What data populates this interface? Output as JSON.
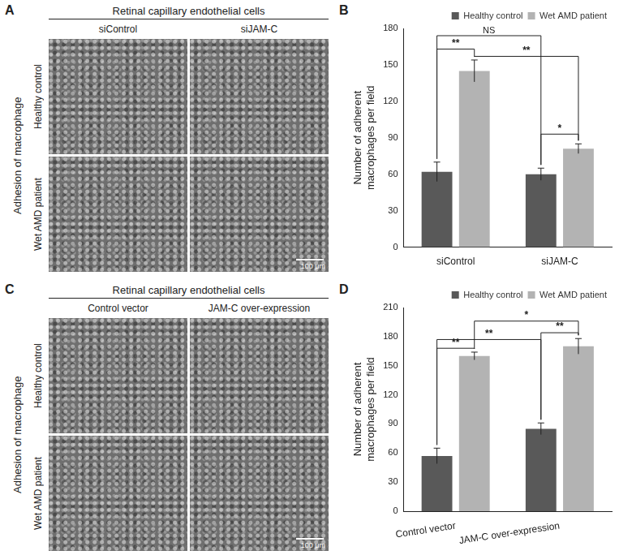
{
  "image_panels": [
    {
      "panel": "A",
      "header": "Retinal capillary endothelial cells",
      "columns": [
        "siControl",
        "siJAM-C"
      ],
      "side_title": "Adhesion of macrophage",
      "rows": [
        "Healthy control",
        "Wet AMD patient"
      ],
      "scale_bar": "100 μm"
    },
    {
      "panel": "C",
      "header": "Retinal capillary endothelial cells",
      "columns": [
        "Control vector",
        "JAM-C over-expression"
      ],
      "side_title": "Adhesion of macrophage",
      "rows": [
        "Healthy control",
        "Wet AMD patient"
      ],
      "scale_bar": "100 μm"
    }
  ],
  "chart_data": [
    {
      "panel": "B",
      "type": "bar",
      "categories": [
        "siControl",
        "siJAM-C"
      ],
      "series": [
        {
          "name": "Healthy control",
          "color": "#595959",
          "values": [
            62,
            60
          ],
          "errors": [
            8,
            5
          ]
        },
        {
          "name": "Wet AMD patient",
          "color": "#b3b3b3",
          "values": [
            145,
            81
          ],
          "errors": [
            9,
            4
          ]
        }
      ],
      "y_label": "Number of adherent macrophages per field",
      "ylim": [
        0,
        180
      ],
      "yticks": [
        0,
        30,
        60,
        90,
        120,
        150,
        180
      ],
      "legend": "upper right",
      "grid": false,
      "annotations": [
        {
          "label": "**",
          "from": [
            0,
            0
          ],
          "to": [
            0,
            1
          ],
          "y": 163
        },
        {
          "label": "**",
          "from": [
            0,
            1
          ],
          "to": [
            1,
            1
          ],
          "y": 157
        },
        {
          "label": "NS",
          "from": [
            0,
            0
          ],
          "to": [
            1,
            0
          ],
          "y": 174
        },
        {
          "label": "*",
          "from": [
            1,
            0
          ],
          "to": [
            1,
            1
          ],
          "y": 93
        }
      ]
    },
    {
      "panel": "D",
      "type": "bar",
      "categories": [
        "Control vector",
        "JAM-C over-expression"
      ],
      "series": [
        {
          "name": "Healthy control",
          "color": "#595959",
          "values": [
            57,
            85
          ],
          "errors": [
            8,
            6
          ]
        },
        {
          "name": "Wet AMD patient",
          "color": "#b3b3b3",
          "values": [
            160,
            170
          ],
          "errors": [
            4,
            8
          ]
        }
      ],
      "y_label": "Number of adherent macrophages per field",
      "ylim": [
        0,
        210
      ],
      "yticks": [
        0,
        30,
        60,
        90,
        120,
        150,
        180,
        210
      ],
      "legend": "upper right",
      "grid": false,
      "annotations": [
        {
          "label": "**",
          "from": [
            0,
            0
          ],
          "to": [
            0,
            1
          ],
          "y": 168
        },
        {
          "label": "**",
          "from": [
            0,
            0
          ],
          "to": [
            1,
            0
          ],
          "y": 177
        },
        {
          "label": "**",
          "from": [
            1,
            0
          ],
          "to": [
            1,
            1
          ],
          "y": 184
        },
        {
          "label": "*",
          "from": [
            0,
            1
          ],
          "to": [
            1,
            1
          ],
          "y": 196
        }
      ]
    }
  ]
}
